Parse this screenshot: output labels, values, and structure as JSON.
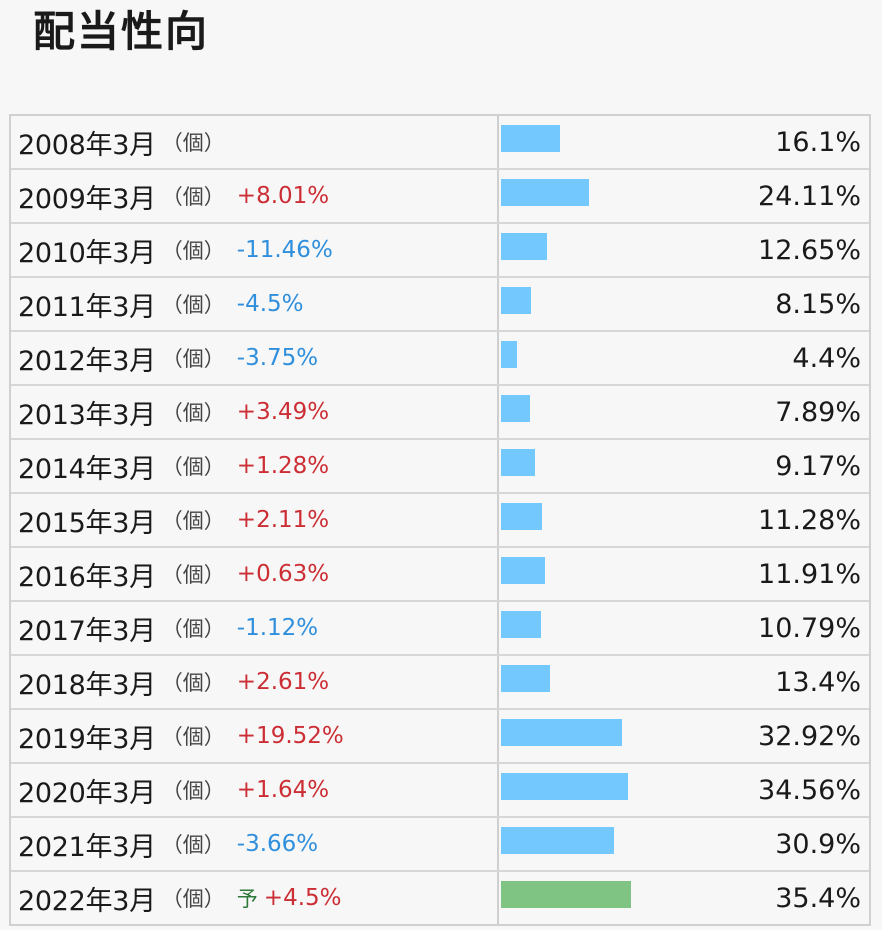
{
  "page": {
    "title": "配当性向"
  },
  "chart_data": {
    "type": "bar",
    "unit_label": "（個）",
    "forecast_marker": "予",
    "rows": [
      {
        "period": "2008年3月",
        "change": "",
        "direction": "",
        "value": 16.1,
        "value_label": "16.1%",
        "forecast": false
      },
      {
        "period": "2009年3月",
        "change": "+8.01%",
        "direction": "up",
        "value": 24.11,
        "value_label": "24.11%",
        "forecast": false
      },
      {
        "period": "2010年3月",
        "change": "-11.46%",
        "direction": "down",
        "value": 12.65,
        "value_label": "12.65%",
        "forecast": false
      },
      {
        "period": "2011年3月",
        "change": "-4.5%",
        "direction": "down",
        "value": 8.15,
        "value_label": "8.15%",
        "forecast": false
      },
      {
        "period": "2012年3月",
        "change": "-3.75%",
        "direction": "down",
        "value": 4.4,
        "value_label": "4.4%",
        "forecast": false
      },
      {
        "period": "2013年3月",
        "change": "+3.49%",
        "direction": "up",
        "value": 7.89,
        "value_label": "7.89%",
        "forecast": false
      },
      {
        "period": "2014年3月",
        "change": "+1.28%",
        "direction": "up",
        "value": 9.17,
        "value_label": "9.17%",
        "forecast": false
      },
      {
        "period": "2015年3月",
        "change": "+2.11%",
        "direction": "up",
        "value": 11.28,
        "value_label": "11.28%",
        "forecast": false
      },
      {
        "period": "2016年3月",
        "change": "+0.63%",
        "direction": "up",
        "value": 11.91,
        "value_label": "11.91%",
        "forecast": false
      },
      {
        "period": "2017年3月",
        "change": "-1.12%",
        "direction": "down",
        "value": 10.79,
        "value_label": "10.79%",
        "forecast": false
      },
      {
        "period": "2018年3月",
        "change": "+2.61%",
        "direction": "up",
        "value": 13.4,
        "value_label": "13.4%",
        "forecast": false
      },
      {
        "period": "2019年3月",
        "change": "+19.52%",
        "direction": "up",
        "value": 32.92,
        "value_label": "32.92%",
        "forecast": false
      },
      {
        "period": "2020年3月",
        "change": "+1.64%",
        "direction": "up",
        "value": 34.56,
        "value_label": "34.56%",
        "forecast": false
      },
      {
        "period": "2021年3月",
        "change": "-3.66%",
        "direction": "down",
        "value": 30.9,
        "value_label": "30.9%",
        "forecast": false
      },
      {
        "period": "2022年3月",
        "change": "+4.5%",
        "direction": "up",
        "value": 35.4,
        "value_label": "35.4%",
        "forecast": true
      }
    ],
    "colors": {
      "bar": "#73c8fe",
      "forecast_bar": "#80c483",
      "up": "#cc2e35",
      "down": "#2f8fdc",
      "forecast_marker": "#2d7a3a"
    }
  }
}
